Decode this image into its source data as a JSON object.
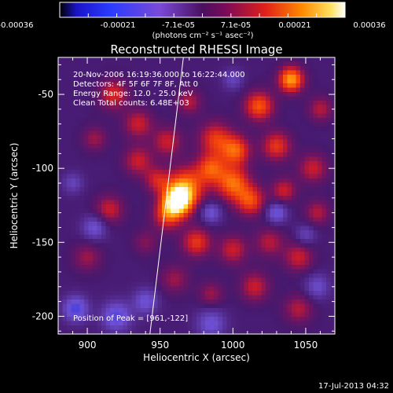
{
  "colorbar": {
    "tick_labels": [
      "-0.00036",
      "-0.00021",
      "-7.1e-05",
      "7.1e-05",
      "0.00021",
      "0.00036"
    ],
    "range": [
      -0.00036,
      0.00036
    ],
    "unit_label": "(photons cm⁻² s⁻¹ asec⁻²)"
  },
  "chart_data": {
    "type": "heatmap",
    "title": "Reconstructed RHESSI Image",
    "xlabel": "Heliocentric X (arcsec)",
    "ylabel": "Heliocentric Y (arcsec)",
    "xlim": [
      880,
      1070
    ],
    "ylim": [
      -212,
      -25
    ],
    "xticks": [
      900,
      950,
      1000,
      1050
    ],
    "yticks": [
      -50,
      -100,
      -150,
      -200
    ],
    "annotations": {
      "time_range": "20-Nov-2006 16:19:36.000 to 16:22:44.000",
      "detectors": "Detectors: 4F 5F 6F 7F 8F, Att 0",
      "energy": "Energy Range: 12.0 - 25.0 keV",
      "clean": "Clean    Total counts: 6.48E+03",
      "peak": "Position of Peak = [961,-122]"
    },
    "peak": {
      "x": 961,
      "y": -122
    },
    "limb_line": {
      "x1": 943,
      "y1": -212,
      "x2": 966,
      "y2": -25
    },
    "blobs": [
      {
        "x": 962,
        "y": -122,
        "amp": 1.0,
        "s": 7
      },
      {
        "x": 968,
        "y": -112,
        "amp": 0.6,
        "s": 9
      },
      {
        "x": 955,
        "y": -132,
        "amp": 0.45,
        "s": 7
      },
      {
        "x": 1040,
        "y": -40,
        "amp": 0.75,
        "s": 6
      },
      {
        "x": 1018,
        "y": -58,
        "amp": 0.55,
        "s": 7
      },
      {
        "x": 1002,
        "y": -88,
        "amp": 0.55,
        "s": 7
      },
      {
        "x": 988,
        "y": -80,
        "amp": 0.45,
        "s": 8
      },
      {
        "x": 1000,
        "y": -110,
        "amp": 0.6,
        "s": 8
      },
      {
        "x": 985,
        "y": -100,
        "amp": 0.5,
        "s": 7
      },
      {
        "x": 1012,
        "y": -122,
        "amp": 0.5,
        "s": 7
      },
      {
        "x": 1030,
        "y": -85,
        "amp": 0.45,
        "s": 7
      },
      {
        "x": 1055,
        "y": -100,
        "amp": 0.35,
        "s": 7
      },
      {
        "x": 935,
        "y": -95,
        "amp": 0.35,
        "s": 7
      },
      {
        "x": 948,
        "y": -108,
        "amp": 0.35,
        "s": 6
      },
      {
        "x": 915,
        "y": -128,
        "amp": 0.35,
        "s": 7
      },
      {
        "x": 918,
        "y": -50,
        "amp": 0.4,
        "s": 7
      },
      {
        "x": 935,
        "y": -70,
        "amp": 0.35,
        "s": 7
      },
      {
        "x": 955,
        "y": -82,
        "amp": 0.35,
        "s": 7
      },
      {
        "x": 975,
        "y": -150,
        "amp": 0.45,
        "s": 7
      },
      {
        "x": 1000,
        "y": -155,
        "amp": 0.35,
        "s": 7
      },
      {
        "x": 1025,
        "y": -150,
        "amp": 0.3,
        "s": 7
      },
      {
        "x": 1045,
        "y": -160,
        "amp": 0.35,
        "s": 7
      },
      {
        "x": 1058,
        "y": -130,
        "amp": 0.3,
        "s": 6
      },
      {
        "x": 1015,
        "y": -180,
        "amp": 0.35,
        "s": 7
      },
      {
        "x": 1045,
        "y": -195,
        "amp": 0.3,
        "s": 7
      },
      {
        "x": 985,
        "y": -185,
        "amp": 0.25,
        "s": 6
      },
      {
        "x": 960,
        "y": -175,
        "amp": 0.25,
        "s": 7
      },
      {
        "x": 900,
        "y": -160,
        "amp": 0.25,
        "s": 7
      },
      {
        "x": 940,
        "y": -150,
        "amp": 0.2,
        "s": 6
      },
      {
        "x": 1060,
        "y": -60,
        "amp": 0.3,
        "s": 6
      },
      {
        "x": 905,
        "y": -80,
        "amp": 0.25,
        "s": 6
      },
      {
        "x": 970,
        "y": -55,
        "amp": 0.3,
        "s": 6
      },
      {
        "x": 1035,
        "y": -115,
        "amp": 0.35,
        "s": 6
      },
      {
        "x": 892,
        "y": -195,
        "amp": -0.5,
        "s": 6
      },
      {
        "x": 920,
        "y": -200,
        "amp": -0.45,
        "s": 7
      },
      {
        "x": 905,
        "y": -140,
        "amp": -0.35,
        "s": 6
      },
      {
        "x": 1030,
        "y": -130,
        "amp": -0.4,
        "s": 5
      },
      {
        "x": 985,
        "y": -130,
        "amp": -0.35,
        "s": 5
      },
      {
        "x": 985,
        "y": -205,
        "amp": -0.35,
        "s": 7
      },
      {
        "x": 1058,
        "y": -180,
        "amp": -0.3,
        "s": 6
      },
      {
        "x": 940,
        "y": -190,
        "amp": -0.35,
        "s": 6
      },
      {
        "x": 1050,
        "y": -145,
        "amp": -0.25,
        "s": 5
      },
      {
        "x": 890,
        "y": -110,
        "amp": -0.25,
        "s": 5
      },
      {
        "x": 1000,
        "y": -40,
        "amp": -0.25,
        "s": 5
      }
    ]
  },
  "footer": {
    "timestamp": "17-Jul-2013 04:32"
  }
}
